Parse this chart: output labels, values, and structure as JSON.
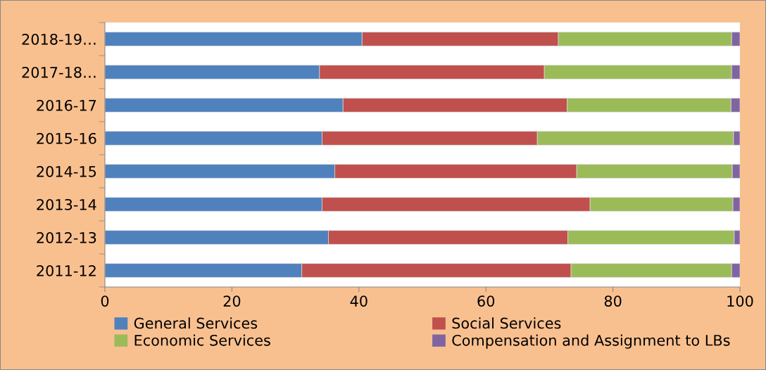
{
  "chart_data": {
    "type": "bar",
    "orientation": "horizontal",
    "stacked": true,
    "categories": [
      "2018-19…",
      "2017-18…",
      "2016-17",
      "2015-16",
      "2014-15",
      "2013-14",
      "2012-13",
      "2011-12"
    ],
    "series": [
      {
        "name": "General Services",
        "color": "#4f81bd",
        "values": [
          40.5,
          33.8,
          37.5,
          34.2,
          36.2,
          34.2,
          35.2,
          31.0
        ]
      },
      {
        "name": "Social Services",
        "color": "#c0504d",
        "values": [
          30.9,
          35.4,
          35.3,
          33.9,
          38.1,
          42.2,
          37.7,
          42.4
        ]
      },
      {
        "name": "Economic Services",
        "color": "#9bbb59",
        "values": [
          27.3,
          29.5,
          25.8,
          30.9,
          24.5,
          22.5,
          26.2,
          25.3
        ]
      },
      {
        "name": "Compensation and Assignment to LBs",
        "color": "#8064a2",
        "values": [
          1.3,
          1.3,
          1.4,
          1.0,
          1.2,
          1.1,
          0.9,
          1.3
        ]
      }
    ],
    "xlim": [
      0,
      100
    ],
    "xticks": [
      0,
      20,
      40,
      60,
      80,
      100
    ],
    "grid": false,
    "legend": "bottom"
  }
}
